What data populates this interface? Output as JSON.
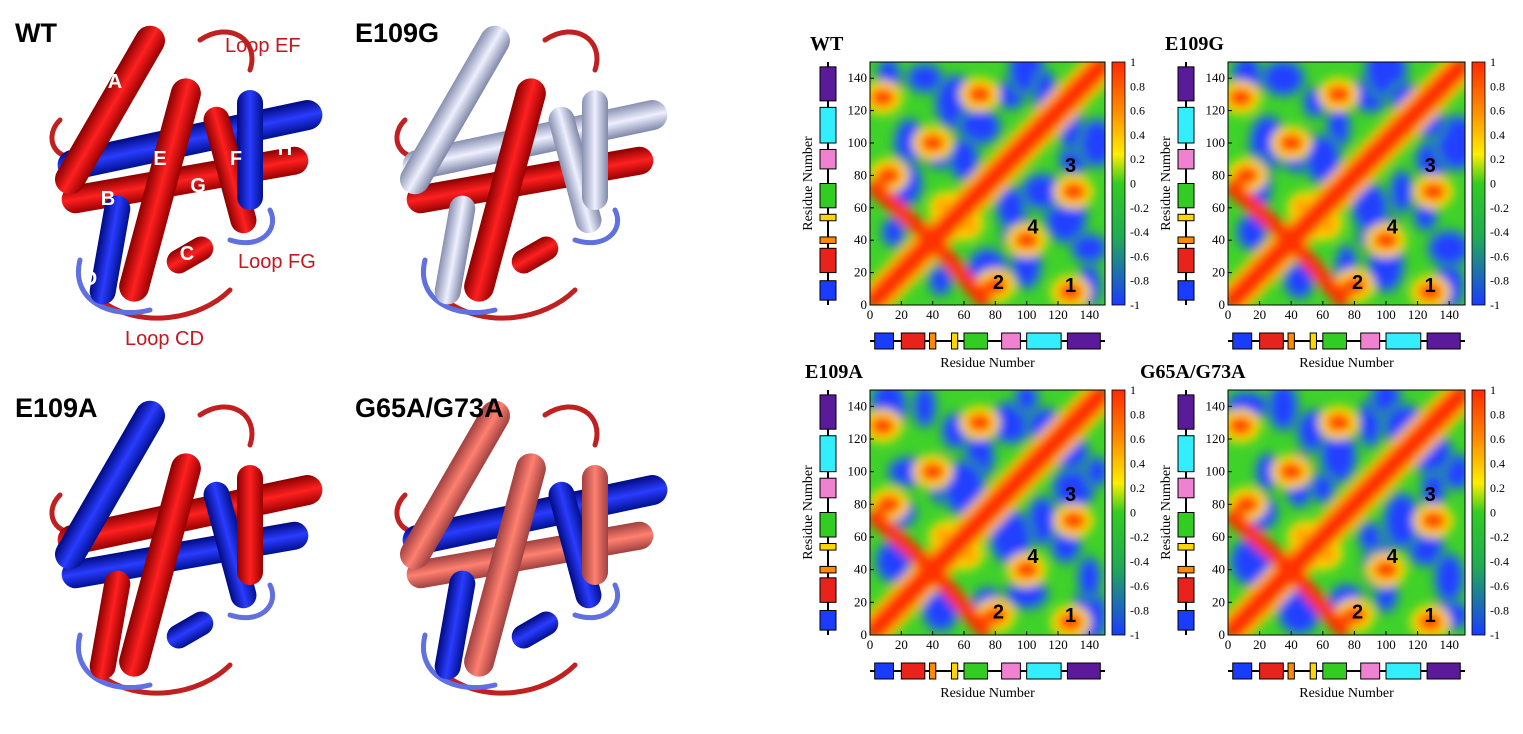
{
  "structures": [
    {
      "label": "WT",
      "helices": [
        "A",
        "B",
        "C",
        "D",
        "E",
        "F",
        "G",
        "H"
      ],
      "loops": [
        "Loop EF",
        "Loop FG",
        "Loop CD"
      ]
    },
    {
      "label": "E109G"
    },
    {
      "label": "E109A"
    },
    {
      "label": "G65A/G73A"
    }
  ],
  "maps": {
    "axis_label": "Residue Number",
    "x_ticks": [
      "0",
      "20",
      "40",
      "60",
      "80",
      "100",
      "120",
      "140"
    ],
    "y_ticks": [
      "0",
      "20",
      "40",
      "60",
      "80",
      "100",
      "120",
      "140"
    ],
    "colorbar_ticks": [
      "1",
      "0.8",
      "0.6",
      "0.4",
      "0.2",
      "0",
      "-0.2",
      "-0.4",
      "-0.6",
      "-0.8",
      "-1"
    ],
    "regions": [
      "1",
      "2",
      "3",
      "4"
    ],
    "panels": [
      {
        "title": "WT"
      },
      {
        "title": "E109G"
      },
      {
        "title": "E109A"
      },
      {
        "title": "G65A/G73A"
      }
    ]
  }
}
